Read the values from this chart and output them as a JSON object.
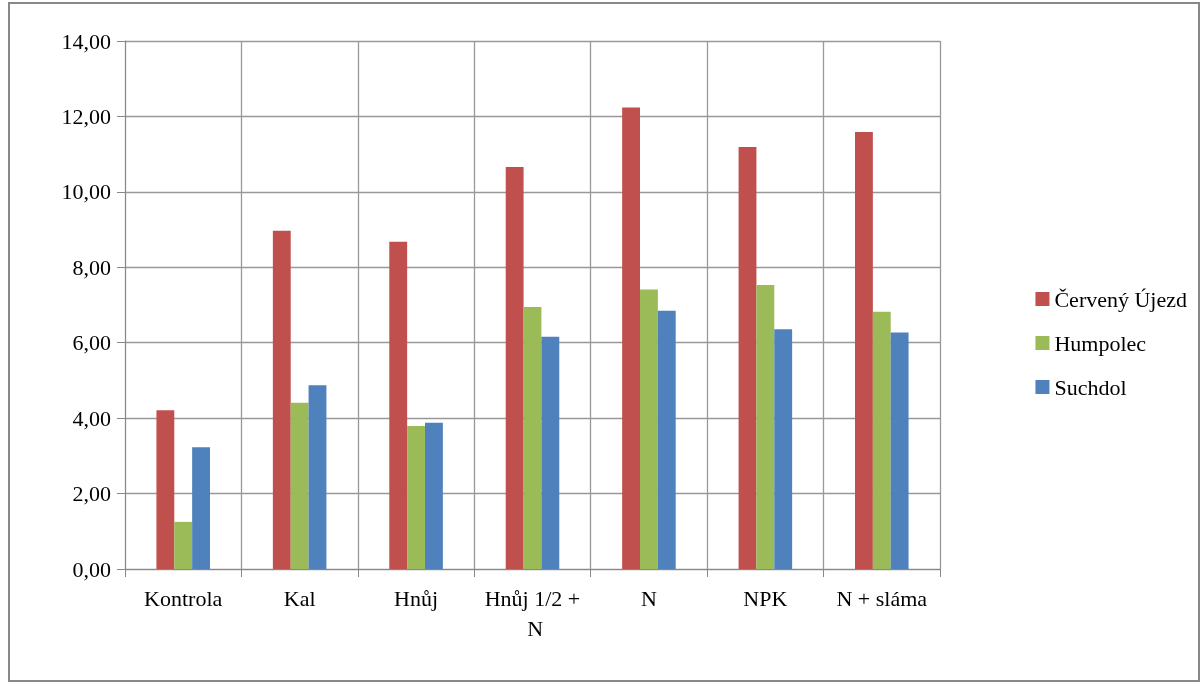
{
  "chart_data": {
    "type": "bar",
    "categories": [
      "Kontrola",
      "Kal",
      "Hnůj",
      "Hnůj 1/2 + N",
      "N",
      "NPK",
      "N + sláma"
    ],
    "series": [
      {
        "name": "Červený Újezd",
        "color": "#c0504d",
        "values": [
          4.21,
          8.97,
          8.68,
          10.66,
          12.24,
          11.19,
          11.59
        ]
      },
      {
        "name": "Humpolec",
        "color": "#9bbb59",
        "values": [
          1.25,
          4.41,
          3.79,
          6.95,
          7.41,
          7.53,
          6.82
        ]
      },
      {
        "name": "Suchdol",
        "color": "#4f81bd",
        "values": [
          3.23,
          4.87,
          3.88,
          6.16,
          6.85,
          6.36,
          6.27
        ]
      }
    ],
    "ylim": [
      0,
      14
    ],
    "yticks": [
      {
        "value": 0,
        "label": "0,00"
      },
      {
        "value": 2,
        "label": "2,00"
      },
      {
        "value": 4,
        "label": "4,00"
      },
      {
        "value": 6,
        "label": "6,00"
      },
      {
        "value": 8,
        "label": "8,00"
      },
      {
        "value": 10,
        "label": "10,00"
      },
      {
        "value": 12,
        "label": "12,00"
      },
      {
        "value": 14,
        "label": "14,00"
      }
    ],
    "grid": true,
    "legend": "right"
  }
}
